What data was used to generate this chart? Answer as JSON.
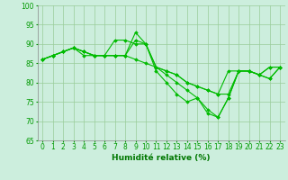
{
  "series": [
    [
      86,
      87,
      88,
      89,
      87,
      87,
      87,
      91,
      91,
      90,
      90,
      83,
      80,
      77,
      75,
      76,
      72,
      71,
      76,
      83,
      83,
      82,
      84,
      84
    ],
    [
      86,
      87,
      88,
      89,
      88,
      87,
      87,
      87,
      87,
      91,
      90,
      84,
      82,
      80,
      78,
      76,
      73,
      71,
      76,
      83,
      83,
      82,
      84,
      84
    ],
    [
      86,
      87,
      88,
      89,
      88,
      87,
      87,
      87,
      87,
      86,
      85,
      84,
      83,
      82,
      80,
      79,
      78,
      77,
      77,
      83,
      83,
      82,
      81,
      84
    ],
    [
      86,
      87,
      88,
      89,
      88,
      87,
      87,
      87,
      87,
      93,
      90,
      84,
      83,
      82,
      80,
      79,
      78,
      77,
      83,
      83,
      83,
      82,
      81,
      84
    ]
  ],
  "x": [
    0,
    1,
    2,
    3,
    4,
    5,
    6,
    7,
    8,
    9,
    10,
    11,
    12,
    13,
    14,
    15,
    16,
    17,
    18,
    19,
    20,
    21,
    22,
    23
  ],
  "xlim": [
    -0.5,
    23.5
  ],
  "ylim": [
    65,
    100
  ],
  "yticks": [
    65,
    70,
    75,
    80,
    85,
    90,
    95,
    100
  ],
  "xtick_labels": [
    "0",
    "1",
    "2",
    "3",
    "4",
    "5",
    "6",
    "7",
    "8",
    "9",
    "10",
    "11",
    "12",
    "13",
    "14",
    "15",
    "16",
    "17",
    "18",
    "19",
    "20",
    "21",
    "22",
    "23"
  ],
  "xlabel": "Humidité relative (%)",
  "line_color": "#00bb00",
  "marker": "D",
  "marker_size": 1.8,
  "line_width": 0.8,
  "bg_color": "#cceedd",
  "grid_color": "#99cc99",
  "tick_color": "#009900",
  "label_color": "#007700",
  "font_size_xlabel": 6.5,
  "font_size_ticks": 5.5
}
